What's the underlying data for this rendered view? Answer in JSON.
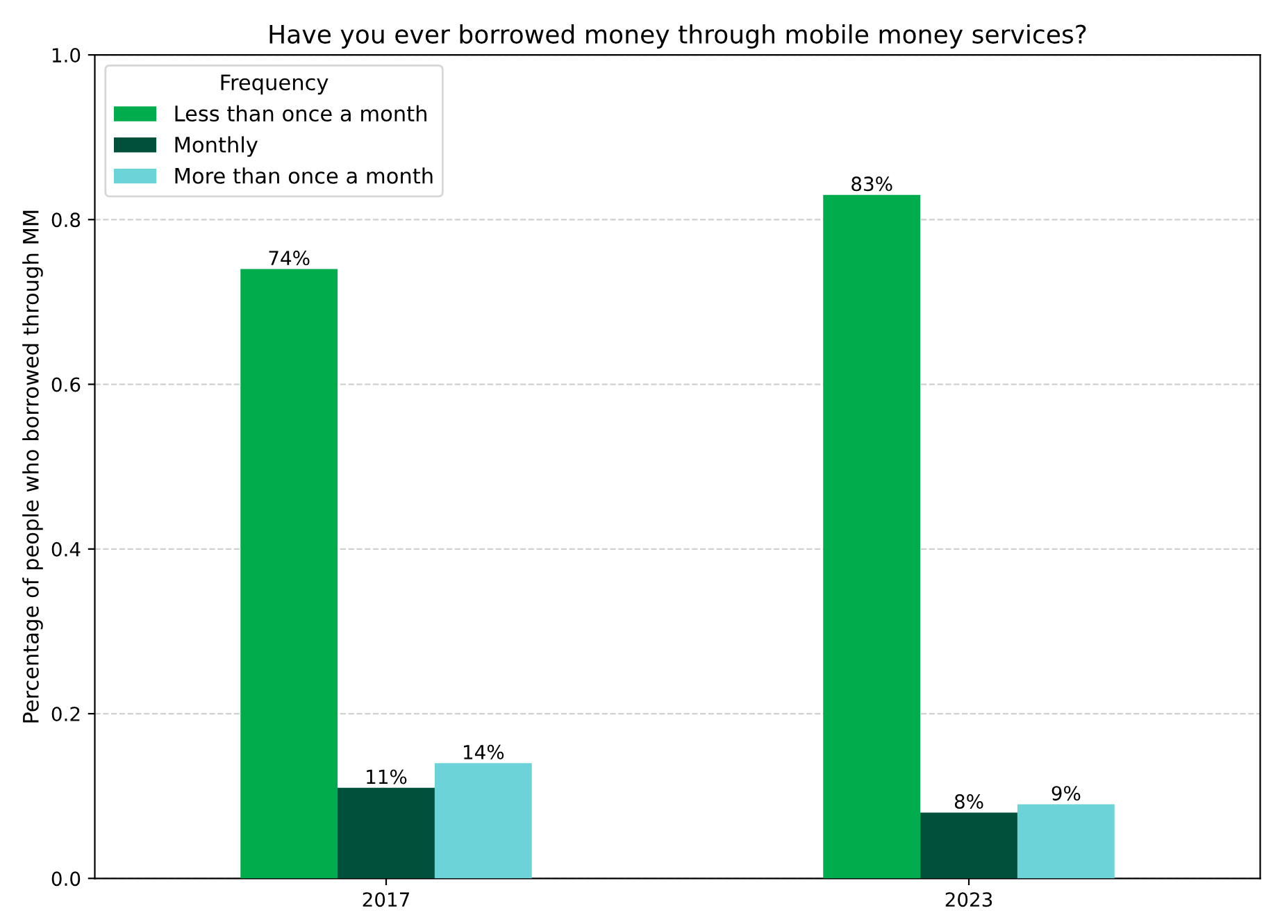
{
  "chart_data": {
    "type": "bar",
    "title": "Have you ever borrowed money through mobile money services?",
    "ylabel": "Percentage of people who borrowed through MM",
    "legend_title": "Frequency",
    "categories": [
      "2017",
      "2023"
    ],
    "series": [
      {
        "name": "Less than once a month",
        "color": "#00ac4b",
        "values": [
          0.74,
          0.83
        ],
        "value_labels": [
          "74%",
          "83%"
        ]
      },
      {
        "name": "Monthly",
        "color": "#00503c",
        "values": [
          0.11,
          0.08
        ],
        "value_labels": [
          "11%",
          "8%"
        ]
      },
      {
        "name": "More than once a month",
        "color": "#6cd4d8",
        "values": [
          0.14,
          0.09
        ],
        "value_labels": [
          "14%",
          "9%"
        ]
      }
    ],
    "ylim": [
      0,
      1.0
    ],
    "yticks": [
      {
        "value": 0,
        "label": "0.0"
      },
      {
        "value": 0.2,
        "label": "0.2"
      },
      {
        "value": 0.4,
        "label": "0.4"
      },
      {
        "value": 0.6,
        "label": "0.6"
      },
      {
        "value": 0.8,
        "label": "0.8"
      },
      {
        "value": 1.0,
        "label": "1.0"
      }
    ],
    "grid": "y",
    "legend": "top left"
  }
}
